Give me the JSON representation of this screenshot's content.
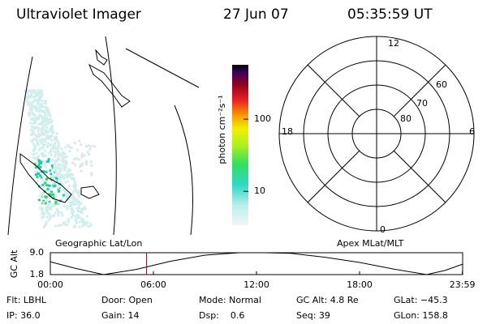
{
  "header": {
    "title": "Ultraviolet Imager",
    "date": "27 Jun 07",
    "time": "05:35:59 UT"
  },
  "map": {
    "label": "Geographic Lat/Lon"
  },
  "polar": {
    "label": "Apex MLat/MLT",
    "mlt_labels": [
      "12",
      "6",
      "0",
      "18"
    ],
    "mlat_labels": [
      "60",
      "70",
      "80"
    ]
  },
  "colorbar": {
    "label": "photon cm⁻²s⁻¹",
    "log": true,
    "lim": [
      3.4,
      566
    ],
    "ticks": [
      10,
      100
    ]
  },
  "altitude_plot": {
    "ylabel": "GC Alt",
    "ylim": [
      1.8,
      9.0
    ],
    "yticks": [
      1.8,
      {
        "value": 9,
        "label": "9.0"
      }
    ],
    "xlim": [
      0,
      24
    ],
    "xticks": [
      {
        "value": 0,
        "label": "00:00"
      },
      {
        "value": 6,
        "label": "06:00"
      },
      {
        "value": 12,
        "label": "12:00"
      },
      {
        "value": 18,
        "label": "18:00"
      },
      {
        "value": 23.983,
        "label": "23:59"
      }
    ],
    "x": [
      0,
      1.5,
      3.1,
      5,
      7,
      9,
      11,
      12.5,
      14,
      16,
      18,
      20,
      21.9,
      23,
      23.98
    ],
    "values": [
      6.0,
      3.8,
      1.8,
      3.5,
      6.2,
      8.2,
      9.0,
      9.0,
      8.8,
      7.5,
      5.8,
      3.6,
      1.8,
      3.2,
      5.2
    ],
    "marker": 5.6,
    "marker_color": "#c00000"
  },
  "footer": [
    [
      "Flt: LBHL",
      "Door: Open",
      "Mode: Normal",
      "GC Alt: 4.8 Re",
      "GLat: −45.3"
    ],
    [
      "IP: 36.0",
      "Gain: 14",
      "Dsp:    0.6",
      "Seq: 39",
      "GLon: 158.8"
    ]
  ]
}
